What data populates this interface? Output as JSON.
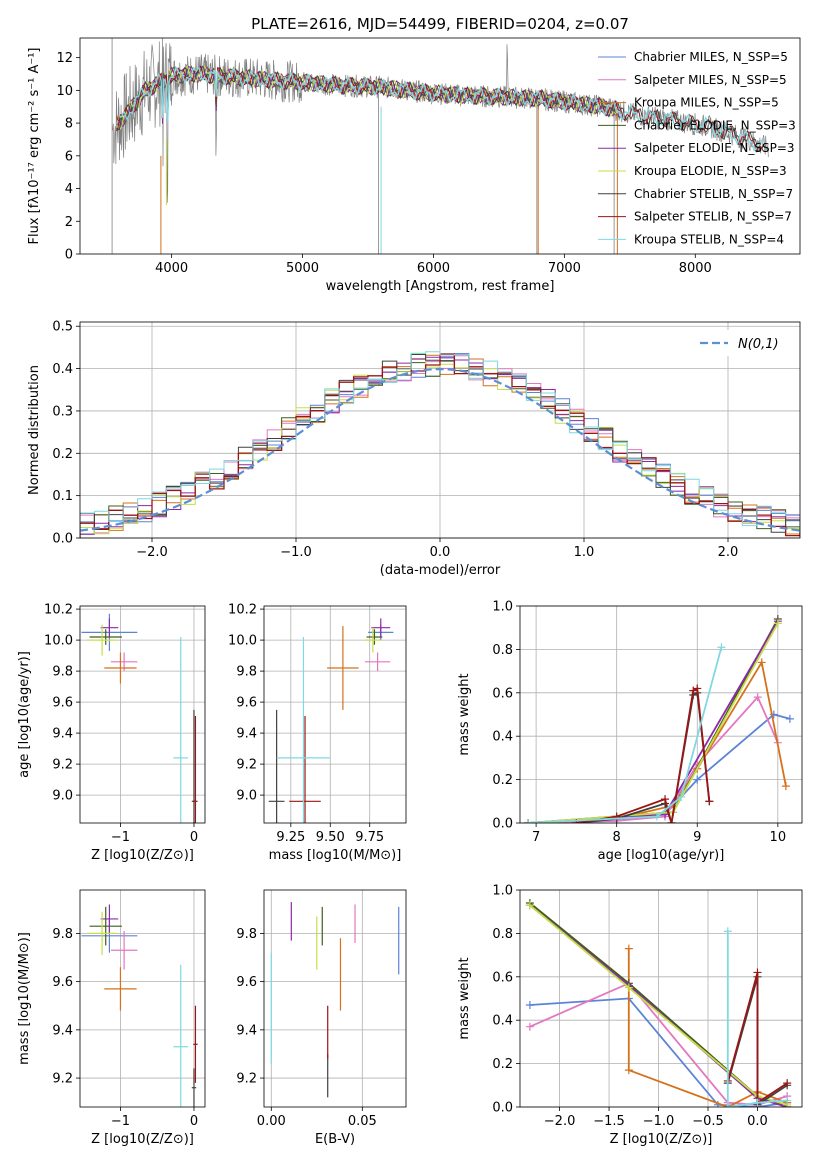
{
  "chart_data": [
    {
      "id": "spectrum",
      "type": "line",
      "title": "PLATE=2616, MJD=54499, FIBERID=0204, z=0.07",
      "xlabel": "wavelength [Angstrom, rest frame]",
      "ylabel": "Flux [fλ10⁻¹⁷ erg cm⁻² s⁻¹ A⁻¹]",
      "xlim": [
        3300,
        8800
      ],
      "ylim": [
        0,
        13.2
      ],
      "xticks": [
        4000,
        5000,
        6000,
        7000,
        8000
      ],
      "yticks": [
        0,
        2,
        4,
        6,
        8,
        10,
        12
      ],
      "legend_position": "top-right",
      "legend": [
        "Chabrier MILES, N_SSP=5",
        "Salpeter MILES, N_SSP=5",
        "Kroupa MILES, N_SSP=5",
        "Chabrier ELODIE, N_SSP=3",
        "Salpeter ELODIE, N_SSP=3",
        "Kroupa ELODIE, N_SSP=3",
        "Chabrier STELIB, N_SSP=7",
        "Salpeter STELIB, N_SSP=7",
        "Kroupa STELIB, N_SSP=4"
      ],
      "continuum": {
        "x": [
          3550,
          3650,
          3800,
          4000,
          4200,
          4500,
          4800,
          5000,
          5300,
          5600,
          5900,
          6200,
          6500,
          6800,
          7000,
          7300,
          7500,
          7800,
          8100,
          8400,
          8550
        ],
        "y": [
          7.6,
          8.5,
          10.0,
          10.9,
          11.0,
          10.8,
          10.6,
          10.5,
          10.3,
          10.2,
          9.9,
          9.7,
          9.6,
          9.5,
          9.3,
          9.0,
          8.6,
          8.2,
          7.8,
          7.0,
          6.5
        ]
      }
    },
    {
      "id": "residuals",
      "type": "line",
      "xlabel": "(data-model)/error",
      "ylabel": "Normed distribution",
      "xlim": [
        -2.5,
        2.5
      ],
      "ylim": [
        0,
        0.51
      ],
      "xticks": [
        -2,
        -1,
        0,
        1,
        2
      ],
      "yticks": [
        0.0,
        0.1,
        0.2,
        0.3,
        0.4,
        0.5
      ],
      "legend": [
        "N(0,1)"
      ],
      "legend_position": "top-right",
      "grid": true
    },
    {
      "id": "age-vs-z",
      "type": "scatter",
      "xlabel": "Z [log10(Z/Z⊙)]",
      "ylabel": "age  [log10(age/yr)]",
      "xlim": [
        -1.55,
        0.15
      ],
      "ylim": [
        8.82,
        10.22
      ],
      "xticks": [
        -1,
        0
      ],
      "yticks": [
        9.0,
        9.2,
        9.4,
        9.6,
        9.8,
        10.0,
        10.2
      ],
      "points": [
        {
          "series": 0,
          "x": -1.15,
          "y": 10.05,
          "xerr": 0.38,
          "yerr": 0.12
        },
        {
          "series": 1,
          "x": -0.95,
          "y": 9.86,
          "xerr": 0.18,
          "yerr": 0.06
        },
        {
          "series": 2,
          "x": -1.0,
          "y": 9.82,
          "xerr": 0.22,
          "yerr": 0.1
        },
        {
          "series": 3,
          "x": -1.2,
          "y": 10.02,
          "xerr": 0.22,
          "yerr": 0.05
        },
        {
          "series": 4,
          "x": -1.15,
          "y": 10.08,
          "xerr": 0.12,
          "yerr": 0.06
        },
        {
          "series": 5,
          "x": -1.25,
          "y": 10.0,
          "xerr": 0.2,
          "yerr": 0.1
        },
        {
          "series": 6,
          "x": 0.0,
          "y": 8.96,
          "xerr": 0.03,
          "yerr": 0.59
        },
        {
          "series": 7,
          "x": 0.02,
          "y": 8.96,
          "xerr": 0.03,
          "yerr": 0.55
        },
        {
          "series": 8,
          "x": -0.18,
          "y": 9.24,
          "xerr": 0.1,
          "yerr": 0.78
        }
      ]
    },
    {
      "id": "age-vs-mass",
      "type": "scatter",
      "xlabel": "mass [log10(M/M⊙)]",
      "ylabel": "",
      "xlim": [
        9.08,
        9.98
      ],
      "ylim": [
        8.82,
        10.22
      ],
      "xticks": [
        9.25,
        9.5,
        9.75
      ],
      "yticks": [
        9.0,
        9.2,
        9.4,
        9.6,
        9.8,
        10.0,
        10.2
      ],
      "points": [
        {
          "series": 0,
          "x": 9.82,
          "y": 10.05,
          "xerr": 0.08,
          "yerr": 0.05
        },
        {
          "series": 1,
          "x": 9.8,
          "y": 9.86,
          "xerr": 0.08,
          "yerr": 0.06
        },
        {
          "series": 2,
          "x": 9.58,
          "y": 9.82,
          "xerr": 0.1,
          "yerr": 0.27
        },
        {
          "series": 3,
          "x": 9.78,
          "y": 10.02,
          "xerr": 0.05,
          "yerr": 0.05
        },
        {
          "series": 4,
          "x": 9.82,
          "y": 10.08,
          "xerr": 0.06,
          "yerr": 0.06
        },
        {
          "series": 5,
          "x": 9.77,
          "y": 10.0,
          "xerr": 0.05,
          "yerr": 0.08
        },
        {
          "series": 6,
          "x": 9.16,
          "y": 8.96,
          "xerr": 0.05,
          "yerr": 0.59
        },
        {
          "series": 7,
          "x": 9.34,
          "y": 8.96,
          "xerr": 0.1,
          "yerr": 0.55
        },
        {
          "series": 8,
          "x": 9.33,
          "y": 9.24,
          "xerr": 0.17,
          "yerr": 0.78
        }
      ]
    },
    {
      "id": "weight-vs-age",
      "type": "line",
      "xlabel": "age  [log10(age/yr)]",
      "ylabel": "mass weight",
      "xlim": [
        6.8,
        10.3
      ],
      "ylim": [
        0,
        1.0
      ],
      "xticks": [
        7,
        8,
        9,
        10
      ],
      "yticks": [
        0.0,
        0.2,
        0.4,
        0.6,
        0.8,
        1.0
      ],
      "series": [
        {
          "x": [
            6.9,
            8.0,
            8.6,
            9.0,
            9.95,
            10.15
          ],
          "y": [
            0.0,
            0.01,
            0.04,
            0.2,
            0.5,
            0.48
          ]
        },
        {
          "x": [
            6.9,
            8.0,
            8.6,
            9.0,
            9.75,
            10.0
          ],
          "y": [
            0.0,
            0.01,
            0.03,
            0.27,
            0.58,
            0.37
          ]
        },
        {
          "x": [
            6.9,
            8.0,
            8.7,
            9.0,
            9.8,
            10.1
          ],
          "y": [
            0.0,
            0.02,
            0.08,
            0.25,
            0.74,
            0.17
          ]
        },
        {
          "x": [
            6.9,
            8.7,
            10.0
          ],
          "y": [
            0.0,
            0.05,
            0.94
          ]
        },
        {
          "x": [
            6.9,
            8.6,
            10.0
          ],
          "y": [
            0.0,
            0.04,
            0.93
          ]
        },
        {
          "x": [
            6.9,
            8.7,
            10.0
          ],
          "y": [
            0.0,
            0.05,
            0.92
          ]
        },
        {
          "x": [
            7.5,
            8.0,
            8.6,
            8.68,
            8.95,
            9.0,
            9.15
          ],
          "y": [
            0.0,
            0.02,
            0.09,
            0.0,
            0.59,
            0.6,
            0.1
          ]
        },
        {
          "x": [
            7.5,
            8.0,
            8.6,
            8.68,
            8.95,
            9.0,
            9.15
          ],
          "y": [
            0.0,
            0.03,
            0.11,
            0.0,
            0.61,
            0.62,
            0.1
          ]
        },
        {
          "x": [
            6.9,
            8.5,
            8.8,
            9.3
          ],
          "y": [
            0.0,
            0.03,
            0.12,
            0.81
          ]
        }
      ]
    },
    {
      "id": "mass-vs-z",
      "type": "scatter",
      "xlabel": "Z [log10(Z/Z⊙)]",
      "ylabel": "mass [log10(M/M⊙)]",
      "xlim": [
        -1.55,
        0.15
      ],
      "ylim": [
        9.08,
        9.98
      ],
      "xticks": [
        -1,
        0
      ],
      "yticks": [
        9.2,
        9.4,
        9.6,
        9.8
      ],
      "points": [
        {
          "series": 0,
          "x": -1.15,
          "y": 9.79,
          "xerr": 0.38,
          "yerr": 0.07
        },
        {
          "series": 1,
          "x": -0.95,
          "y": 9.73,
          "xerr": 0.18,
          "yerr": 0.08
        },
        {
          "series": 2,
          "x": -1.0,
          "y": 9.57,
          "xerr": 0.22,
          "yerr": 0.09
        },
        {
          "series": 3,
          "x": -1.2,
          "y": 9.83,
          "xerr": 0.22,
          "yerr": 0.08
        },
        {
          "series": 4,
          "x": -1.15,
          "y": 9.86,
          "xerr": 0.12,
          "yerr": 0.06
        },
        {
          "series": 5,
          "x": -1.25,
          "y": 9.8,
          "xerr": 0.2,
          "yerr": 0.09
        },
        {
          "series": 6,
          "x": 0.0,
          "y": 9.16,
          "xerr": 0.03,
          "yerr": 0.08
        },
        {
          "series": 7,
          "x": 0.02,
          "y": 9.34,
          "xerr": 0.03,
          "yerr": 0.16
        },
        {
          "series": 8,
          "x": -0.18,
          "y": 9.33,
          "xerr": 0.1,
          "yerr": 0.34
        }
      ]
    },
    {
      "id": "mass-vs-ebv",
      "type": "scatter",
      "xlabel": "E(B-V)",
      "ylabel": "",
      "xlim": [
        -0.004,
        0.074
      ],
      "ylim": [
        9.08,
        9.98
      ],
      "xticks": [
        0.0,
        0.05
      ],
      "yticks": [
        9.2,
        9.4,
        9.6,
        9.8
      ],
      "points": [
        {
          "series": 0,
          "x": 0.07,
          "y": 9.77,
          "xerr": 0.0,
          "yerr": 0.14
        },
        {
          "series": 1,
          "x": 0.046,
          "y": 9.84,
          "xerr": 0.0,
          "yerr": 0.08
        },
        {
          "series": 2,
          "x": 0.038,
          "y": 9.63,
          "xerr": 0.0,
          "yerr": 0.15
        },
        {
          "series": 3,
          "x": 0.028,
          "y": 9.83,
          "xerr": 0.0,
          "yerr": 0.08
        },
        {
          "series": 4,
          "x": 0.011,
          "y": 9.85,
          "xerr": 0.0,
          "yerr": 0.08
        },
        {
          "series": 5,
          "x": 0.025,
          "y": 9.76,
          "xerr": 0.0,
          "yerr": 0.11
        },
        {
          "series": 6,
          "x": 0.031,
          "y": 9.21,
          "xerr": 0.0,
          "yerr": 0.09
        },
        {
          "series": 7,
          "x": 0.031,
          "y": 9.39,
          "xerr": 0.0,
          "yerr": 0.11
        },
        {
          "series": 8,
          "x": 0.0,
          "y": 9.49,
          "xerr": 0.0,
          "yerr": 0.23
        }
      ]
    },
    {
      "id": "weight-vs-z",
      "type": "line",
      "xlabel": "Z [log10(Z/Z⊙)]",
      "ylabel": "mass weight",
      "xlim": [
        -2.4,
        0.45
      ],
      "ylim": [
        0,
        1.0
      ],
      "xticks": [
        -2.0,
        -1.5,
        -1.0,
        -0.5,
        0.0
      ],
      "yticks": [
        0.0,
        0.2,
        0.4,
        0.6,
        0.8,
        1.0
      ],
      "series": [
        {
          "x": [
            -2.3,
            -1.3,
            -0.4,
            0.0,
            0.3
          ],
          "y": [
            0.47,
            0.5,
            0.01,
            0.0,
            0.02
          ]
        },
        {
          "x": [
            -2.3,
            -1.3,
            -0.3,
            0.0,
            0.3
          ],
          "y": [
            0.37,
            0.57,
            0.02,
            0.01,
            0.05
          ]
        },
        {
          "x": [
            -1.3,
            -1.3,
            -0.3,
            0.0,
            0.3
          ],
          "y": [
            0.73,
            0.17,
            0.0,
            0.07,
            0.02
          ]
        },
        {
          "x": [
            -2.3,
            -1.3,
            0.0,
            0.3
          ],
          "y": [
            0.94,
            0.57,
            0.05,
            0.0
          ]
        },
        {
          "x": [
            -2.3,
            -1.3,
            0.0,
            0.3
          ],
          "y": [
            0.93,
            0.56,
            0.04,
            0.0
          ]
        },
        {
          "x": [
            -2.3,
            -1.3,
            0.0,
            0.3
          ],
          "y": [
            0.93,
            0.55,
            0.05,
            0.01
          ]
        },
        {
          "x": [
            -0.3,
            0.0,
            0.0,
            0.3
          ],
          "y": [
            0.11,
            0.6,
            0.01,
            0.1
          ]
        },
        {
          "x": [
            -0.3,
            0.0,
            0.0,
            0.3
          ],
          "y": [
            0.12,
            0.62,
            0.02,
            0.11
          ]
        },
        {
          "x": [
            -0.3,
            -0.3,
            0.0,
            0.3
          ],
          "y": [
            0.81,
            0.0,
            0.02,
            0.03
          ]
        }
      ]
    }
  ],
  "series_colors": [
    "#5b84d6",
    "#e377c2",
    "#d6711b",
    "#3e5e1e",
    "#8c2aa8",
    "#c6dd45",
    "#404040",
    "#9c1515",
    "#7fd8e2"
  ],
  "data_color": "#808080",
  "normal_color": "#5b8fd6"
}
